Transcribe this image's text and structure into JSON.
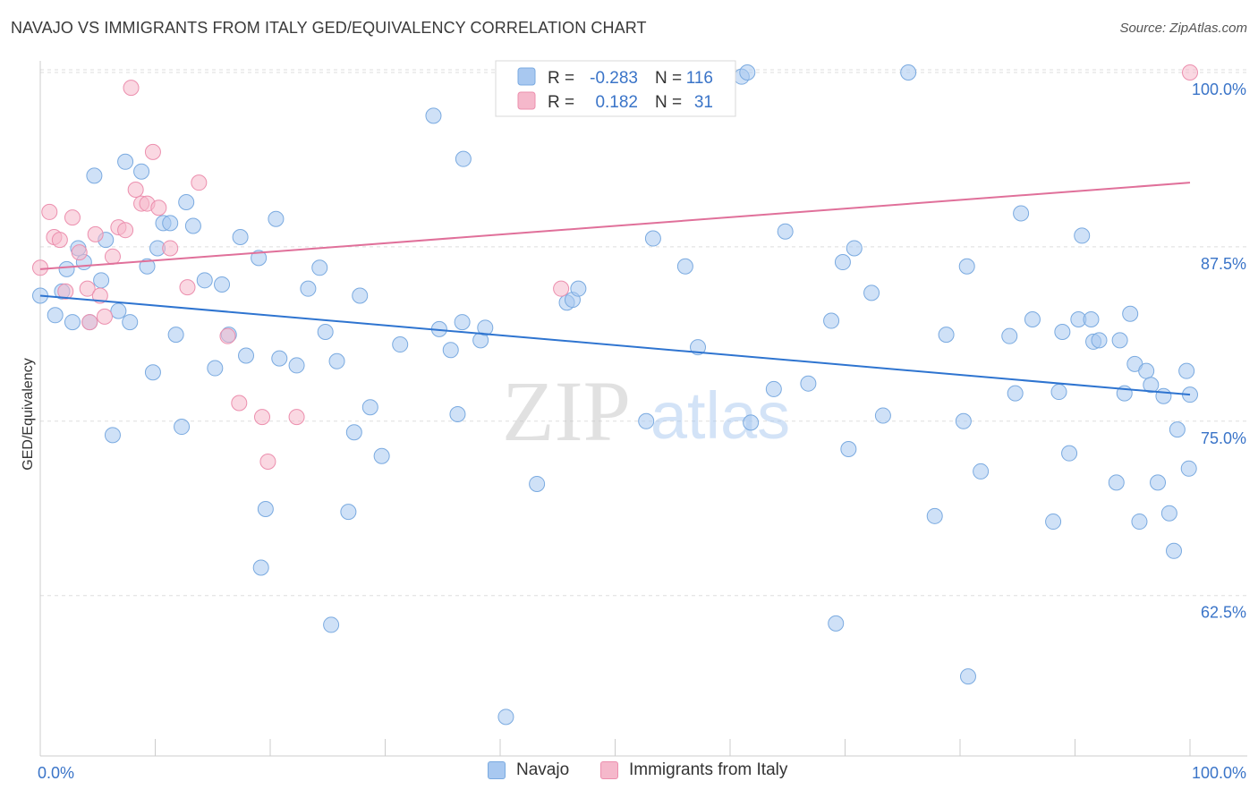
{
  "header": {
    "title": "NAVAJO VS IMMIGRANTS FROM ITALY GED/EQUIVALENCY CORRELATION CHART",
    "source": "Source: ZipAtlas.com"
  },
  "watermark": {
    "part1": "ZIP",
    "part2": "atlas"
  },
  "colors": {
    "navajo_fill": "#a8c8f0",
    "navajo_stroke": "#7aaae0",
    "navajo_line": "#2e74d0",
    "italy_fill": "#f5b8cb",
    "italy_stroke": "#ec8fae",
    "italy_line": "#e0709a",
    "axis_label": "#3a74c8",
    "grid": "#dddddd"
  },
  "stats_legend": {
    "rows": [
      {
        "r_label": "R =",
        "r_value": "-0.283",
        "n_label": "N =",
        "n_value": "116"
      },
      {
        "r_label": "R =",
        "r_value": "0.182",
        "n_label": "N =",
        "n_value": "31"
      }
    ]
  },
  "chart_data": {
    "type": "scatter",
    "title": "NAVAJO VS IMMIGRANTS FROM ITALY GED/EQUIVALENCY CORRELATION CHART",
    "xlabel": "",
    "ylabel": "GED/Equivalency",
    "xlim": [
      0,
      100
    ],
    "ylim": [
      51,
      100
    ],
    "x_tick_labels": [
      "0.0%",
      "100.0%"
    ],
    "y_ticks": [
      62.5,
      75.0,
      87.5,
      100.0
    ],
    "y_tick_labels": [
      "62.5%",
      "75.0%",
      "87.5%",
      "100.0%"
    ],
    "grid": true,
    "legend": "bottom-center",
    "series": [
      {
        "name": "Navajo",
        "trend": {
          "x": [
            0,
            100
          ],
          "y": [
            84.0,
            76.9
          ]
        },
        "points": [
          [
            0,
            84
          ],
          [
            1.3,
            82.6
          ],
          [
            1.9,
            84.3
          ],
          [
            2.3,
            85.9
          ],
          [
            2.8,
            82.1
          ],
          [
            3.3,
            87.4
          ],
          [
            3.8,
            86.4
          ],
          [
            4.3,
            82.1
          ],
          [
            4.7,
            92.6
          ],
          [
            5.3,
            85.1
          ],
          [
            5.7,
            88
          ],
          [
            6.3,
            74
          ],
          [
            6.8,
            82.9
          ],
          [
            7.4,
            93.6
          ],
          [
            7.8,
            82.1
          ],
          [
            8.8,
            92.9
          ],
          [
            9.3,
            86.1
          ],
          [
            9.8,
            78.5
          ],
          [
            10.2,
            87.4
          ],
          [
            10.7,
            89.2
          ],
          [
            11.3,
            89.2
          ],
          [
            11.8,
            81.2
          ],
          [
            12.3,
            74.6
          ],
          [
            12.7,
            90.7
          ],
          [
            13.3,
            89
          ],
          [
            14.3,
            85.1
          ],
          [
            15.2,
            78.8
          ],
          [
            15.8,
            84.8
          ],
          [
            16.4,
            81.2
          ],
          [
            17.4,
            88.2
          ],
          [
            17.9,
            79.7
          ],
          [
            19,
            86.7
          ],
          [
            19.2,
            64.5
          ],
          [
            19.6,
            68.7
          ],
          [
            20.5,
            89.5
          ],
          [
            20.8,
            79.5
          ],
          [
            22.3,
            79
          ],
          [
            23.3,
            84.5
          ],
          [
            24.3,
            86
          ],
          [
            24.8,
            81.4
          ],
          [
            25.3,
            60.4
          ],
          [
            25.8,
            79.3
          ],
          [
            26.8,
            68.5
          ],
          [
            27.3,
            74.2
          ],
          [
            27.8,
            84
          ],
          [
            28.7,
            76
          ],
          [
            29.7,
            72.5
          ],
          [
            31.3,
            80.5
          ],
          [
            34.2,
            96.9
          ],
          [
            34.7,
            81.6
          ],
          [
            35.7,
            80.1
          ],
          [
            36.3,
            75.5
          ],
          [
            36.7,
            82.1
          ],
          [
            36.8,
            93.8
          ],
          [
            38.3,
            80.8
          ],
          [
            38.7,
            81.7
          ],
          [
            40.5,
            53.8
          ],
          [
            43.2,
            70.5
          ],
          [
            45.8,
            83.5
          ],
          [
            46.3,
            83.7
          ],
          [
            46.8,
            84.5
          ],
          [
            52.7,
            75
          ],
          [
            52.8,
            100
          ],
          [
            53.3,
            88.1
          ],
          [
            56.1,
            86.1
          ],
          [
            57.2,
            80.3
          ],
          [
            61,
            99.7
          ],
          [
            61.5,
            100
          ],
          [
            61.8,
            74.9
          ],
          [
            63.8,
            77.3
          ],
          [
            64.8,
            88.6
          ],
          [
            66.8,
            77.7
          ],
          [
            68.8,
            82.2
          ],
          [
            69.2,
            60.5
          ],
          [
            69.8,
            86.4
          ],
          [
            70.3,
            73
          ],
          [
            70.8,
            87.4
          ],
          [
            72.3,
            84.2
          ],
          [
            73.3,
            75.4
          ],
          [
            75.5,
            100
          ],
          [
            77.8,
            68.2
          ],
          [
            78.8,
            81.2
          ],
          [
            80.3,
            75
          ],
          [
            80.6,
            86.1
          ],
          [
            80.7,
            56.7
          ],
          [
            81.8,
            71.4
          ],
          [
            84.3,
            81.1
          ],
          [
            84.8,
            77
          ],
          [
            85.3,
            89.9
          ],
          [
            86.3,
            82.3
          ],
          [
            88.1,
            67.8
          ],
          [
            88.6,
            77.1
          ],
          [
            88.9,
            81.4
          ],
          [
            89.5,
            72.7
          ],
          [
            90.3,
            82.3
          ],
          [
            90.6,
            88.3
          ],
          [
            91.4,
            82.3
          ],
          [
            91.6,
            80.7
          ],
          [
            92.1,
            80.8
          ],
          [
            93.6,
            70.6
          ],
          [
            93.9,
            80.8
          ],
          [
            94.3,
            77
          ],
          [
            94.8,
            82.7
          ],
          [
            95.2,
            79.1
          ],
          [
            95.6,
            67.8
          ],
          [
            96.2,
            78.6
          ],
          [
            96.6,
            77.6
          ],
          [
            97.2,
            70.6
          ],
          [
            97.7,
            76.8
          ],
          [
            98.2,
            68.4
          ],
          [
            98.6,
            65.7
          ],
          [
            98.9,
            74.4
          ],
          [
            99.7,
            78.6
          ],
          [
            99.9,
            71.6
          ],
          [
            100,
            76.9
          ]
        ]
      },
      {
        "name": "Immigrants from Italy",
        "trend": {
          "x": [
            0,
            100
          ],
          "y": [
            85.9,
            92.1
          ]
        },
        "points": [
          [
            0,
            86
          ],
          [
            0.8,
            90
          ],
          [
            1.2,
            88.2
          ],
          [
            1.7,
            88
          ],
          [
            2.2,
            84.3
          ],
          [
            2.8,
            89.6
          ],
          [
            3.4,
            87.1
          ],
          [
            4.1,
            84.5
          ],
          [
            4.3,
            82.1
          ],
          [
            4.8,
            88.4
          ],
          [
            5.2,
            84
          ],
          [
            5.6,
            82.5
          ],
          [
            6.3,
            86.8
          ],
          [
            6.8,
            88.9
          ],
          [
            7.4,
            88.7
          ],
          [
            7.9,
            98.9
          ],
          [
            8.3,
            91.6
          ],
          [
            8.8,
            90.6
          ],
          [
            9.3,
            90.6
          ],
          [
            9.8,
            94.3
          ],
          [
            10.3,
            90.3
          ],
          [
            11.3,
            87.4
          ],
          [
            12.8,
            84.6
          ],
          [
            13.8,
            92.1
          ],
          [
            16.3,
            81.1
          ],
          [
            17.3,
            76.3
          ],
          [
            19.3,
            75.3
          ],
          [
            19.8,
            72.1
          ],
          [
            22.3,
            75.3
          ],
          [
            45.3,
            84.5
          ],
          [
            100,
            100
          ]
        ]
      }
    ]
  }
}
